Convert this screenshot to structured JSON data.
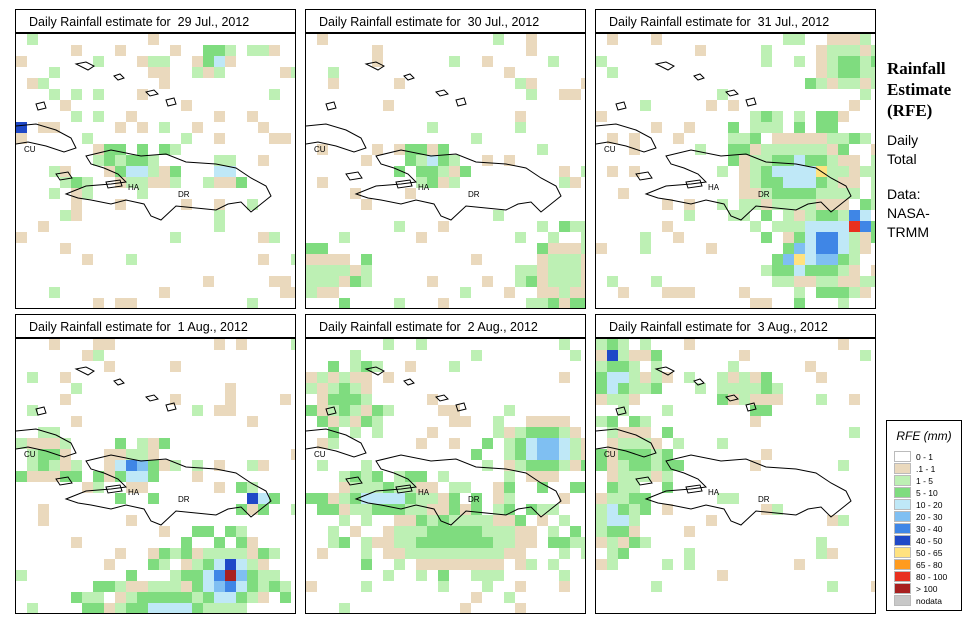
{
  "panels": [
    {
      "title": "Daily Rainfall estimate for  29 Jul., 2012",
      "blob_set": 0
    },
    {
      "title": "Daily Rainfall estimate for  30 Jul., 2012",
      "blob_set": 1
    },
    {
      "title": "Daily Rainfall estimate for  31 Jul., 2012",
      "blob_set": 2
    },
    {
      "title": "Daily Rainfall estimate for  1 Aug., 2012",
      "blob_set": 3
    },
    {
      "title": "Daily Rainfall estimate for  2 Aug., 2012",
      "blob_set": 4
    },
    {
      "title": "Daily Rainfall estimate for  3 Aug., 2012",
      "blob_set": 5
    }
  ],
  "map_labels": {
    "cuba": "CU",
    "haiti": "HA",
    "dominican_republic": "DR"
  },
  "side": {
    "title_lines": [
      "Rainfall",
      "Estimate",
      "(RFE)"
    ],
    "desc_lines": [
      "Daily",
      "Total"
    ],
    "source_lines": [
      "Data:",
      "NASA-",
      "TRMM"
    ]
  },
  "legend": {
    "title": "RFE (mm)",
    "items": [
      {
        "label": "0 - 1",
        "color": "#ffffff"
      },
      {
        "label": ".1 - 1",
        "color": "#ead9bd"
      },
      {
        "label": "1 - 5",
        "color": "#bdf0b4"
      },
      {
        "label": "5 - 10",
        "color": "#7fdc7f"
      },
      {
        "label": "10 - 20",
        "color": "#bfe8f7"
      },
      {
        "label": "20 - 30",
        "color": "#7fbff2"
      },
      {
        "label": "30 - 40",
        "color": "#3f86e6"
      },
      {
        "label": "40 - 50",
        "color": "#1f48c7"
      },
      {
        "label": "50 - 65",
        "color": "#ffe27f"
      },
      {
        "label": "65 - 80",
        "color": "#ff9b1f"
      },
      {
        "label": "80 - 100",
        "color": "#e8301f"
      },
      {
        "label": "> 100",
        "color": "#a82020"
      },
      {
        "label": "nodata",
        "color": "#c8c8c8"
      }
    ]
  }
}
